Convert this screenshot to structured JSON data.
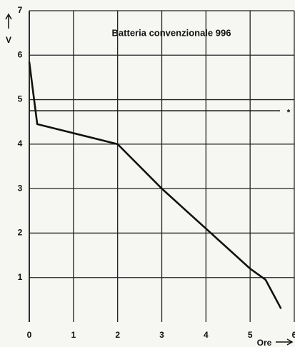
{
  "chart_data": {
    "type": "line",
    "title": "Batteria convenzionale 996",
    "y_label": "V",
    "x_label": "Ore",
    "series": [
      {
        "name": null,
        "color": "#111111",
        "x": [
          0,
          0.18,
          2,
          3,
          4,
          5,
          5.35,
          5.7
        ],
        "values": [
          5.85,
          4.45,
          4.0,
          3.0,
          2.1,
          1.2,
          0.95,
          0.3
        ]
      }
    ],
    "reference_line": 4.75,
    "annotation": "*",
    "xlim": [
      0,
      6
    ],
    "xticks": [
      0,
      1,
      2,
      3,
      4,
      5,
      6
    ],
    "ylim": [
      0,
      7
    ],
    "yticks": [
      1,
      2,
      3,
      4,
      5,
      6,
      7
    ],
    "grid": true
  }
}
